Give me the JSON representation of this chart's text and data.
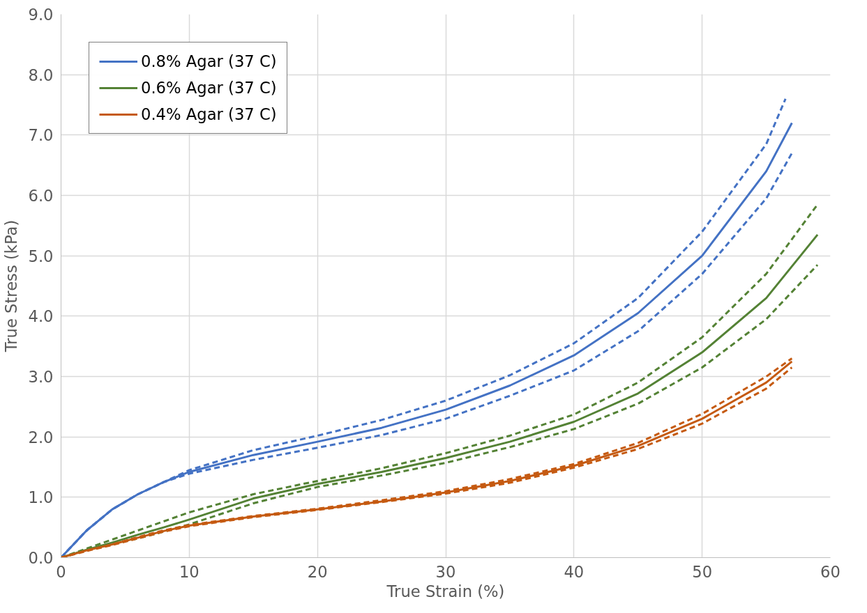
{
  "chart_data": {
    "type": "line",
    "xlabel": "True Strain (%)",
    "ylabel": "True Stress (kPa)",
    "xlim": [
      0,
      60
    ],
    "xticks": [
      0,
      10,
      20,
      30,
      40,
      50,
      60
    ],
    "ylim": [
      0,
      9
    ],
    "yticks": [
      {
        "value": 0,
        "label": "0.0"
      },
      {
        "value": 1,
        "label": "1.0"
      },
      {
        "value": 2,
        "label": "2.0"
      },
      {
        "value": 3,
        "label": "3.0"
      },
      {
        "value": 4,
        "label": "4.0"
      },
      {
        "value": 5,
        "label": "5.0"
      },
      {
        "value": 6,
        "label": "6.0"
      },
      {
        "value": 7,
        "label": "7.0"
      },
      {
        "value": 8,
        "label": "8.0"
      },
      {
        "value": 9,
        "label": "9.0"
      }
    ],
    "grid": true,
    "legend": "top left",
    "series": [
      {
        "name": "0.8% Agar (37 C)",
        "color": "#4472c4",
        "line_style": "solid",
        "x": [
          0,
          2,
          4,
          6,
          8,
          10,
          15,
          20,
          25,
          30,
          35,
          40,
          45,
          50,
          55,
          57
        ],
        "values": [
          0,
          0.45,
          0.8,
          1.05,
          1.25,
          1.42,
          1.7,
          1.92,
          2.15,
          2.45,
          2.85,
          3.35,
          4.05,
          5.0,
          6.4,
          7.2
        ]
      },
      {
        "name": "0.6% Agar (37 C)",
        "color": "#548235",
        "line_style": "solid",
        "x": [
          0,
          2,
          4,
          6,
          8,
          10,
          15,
          20,
          25,
          30,
          35,
          40,
          45,
          50,
          55,
          59
        ],
        "values": [
          0,
          0.13,
          0.25,
          0.38,
          0.5,
          0.63,
          0.98,
          1.22,
          1.42,
          1.65,
          1.92,
          2.25,
          2.72,
          3.4,
          4.3,
          5.35
        ]
      },
      {
        "name": "0.4% Agar (37 C)",
        "color": "#c55a11",
        "line_style": "solid",
        "x": [
          0,
          2,
          4,
          6,
          8,
          10,
          15,
          20,
          25,
          30,
          35,
          40,
          45,
          50,
          55,
          57
        ],
        "values": [
          0,
          0.12,
          0.22,
          0.33,
          0.44,
          0.53,
          0.68,
          0.8,
          0.93,
          1.08,
          1.27,
          1.52,
          1.85,
          2.3,
          2.9,
          3.25
        ]
      },
      {
        "color": "#4472c4",
        "line_style": "dashed",
        "x": [
          0,
          2,
          4,
          6,
          8,
          10,
          15,
          20,
          25,
          30,
          35,
          40,
          45,
          50,
          55,
          56.5
        ],
        "values": [
          0,
          0.45,
          0.8,
          1.05,
          1.25,
          1.45,
          1.78,
          2.02,
          2.28,
          2.6,
          3.02,
          3.55,
          4.3,
          5.4,
          6.85,
          7.6
        ]
      },
      {
        "color": "#4472c4",
        "line_style": "dashed",
        "x": [
          0,
          2,
          4,
          6,
          8,
          10,
          15,
          20,
          25,
          30,
          35,
          40,
          45,
          50,
          55,
          57
        ],
        "values": [
          0,
          0.45,
          0.8,
          1.05,
          1.25,
          1.39,
          1.62,
          1.82,
          2.03,
          2.3,
          2.68,
          3.1,
          3.75,
          4.7,
          5.95,
          6.7
        ]
      },
      {
        "color": "#548235",
        "line_style": "dashed",
        "x": [
          0,
          2,
          4,
          6,
          8,
          10,
          15,
          20,
          25,
          30,
          35,
          40,
          45,
          50,
          55,
          59
        ],
        "values": [
          0,
          0.15,
          0.3,
          0.45,
          0.6,
          0.75,
          1.05,
          1.27,
          1.48,
          1.73,
          2.02,
          2.37,
          2.9,
          3.65,
          4.7,
          5.85
        ]
      },
      {
        "color": "#548235",
        "line_style": "dashed",
        "x": [
          0,
          2,
          4,
          6,
          8,
          10,
          15,
          20,
          25,
          30,
          35,
          40,
          45,
          50,
          55,
          59
        ],
        "values": [
          0,
          0.12,
          0.22,
          0.32,
          0.43,
          0.55,
          0.9,
          1.17,
          1.36,
          1.57,
          1.83,
          2.13,
          2.55,
          3.15,
          3.95,
          4.85
        ]
      },
      {
        "color": "#c55a11",
        "line_style": "dashed",
        "x": [
          0,
          2,
          4,
          6,
          8,
          10,
          15,
          20,
          25,
          30,
          35,
          40,
          45,
          50,
          55,
          57
        ],
        "values": [
          0,
          0.12,
          0.22,
          0.34,
          0.45,
          0.54,
          0.69,
          0.81,
          0.95,
          1.1,
          1.3,
          1.55,
          1.9,
          2.38,
          3.0,
          3.3
        ]
      },
      {
        "color": "#c55a11",
        "line_style": "dashed",
        "x": [
          0,
          2,
          4,
          6,
          8,
          10,
          15,
          20,
          25,
          30,
          35,
          40,
          45,
          50,
          55,
          57
        ],
        "values": [
          0,
          0.11,
          0.21,
          0.32,
          0.43,
          0.52,
          0.67,
          0.79,
          0.92,
          1.06,
          1.24,
          1.49,
          1.8,
          2.22,
          2.8,
          3.15
        ]
      }
    ]
  }
}
